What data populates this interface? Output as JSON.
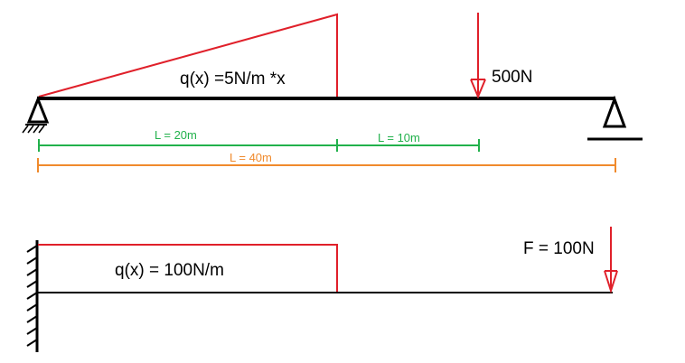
{
  "colors": {
    "beam": "#000000",
    "load": "#e0202a",
    "dimension_green": "#22b14c",
    "dimension_orange": "#f08a2c"
  },
  "top_beam": {
    "load_label": "q(x) =5N/m *x",
    "point_load_label": "500N",
    "dim_first": "L = 20m",
    "dim_second": "L = 10m",
    "dim_total": "L = 40m",
    "left_support_icon": "pin-support-icon",
    "right_support_icon": "roller-support-icon"
  },
  "bottom_beam": {
    "load_label": "q(x) = 100N/m",
    "point_load_label": "F = 100N",
    "wall_icon": "fixed-wall-icon"
  }
}
